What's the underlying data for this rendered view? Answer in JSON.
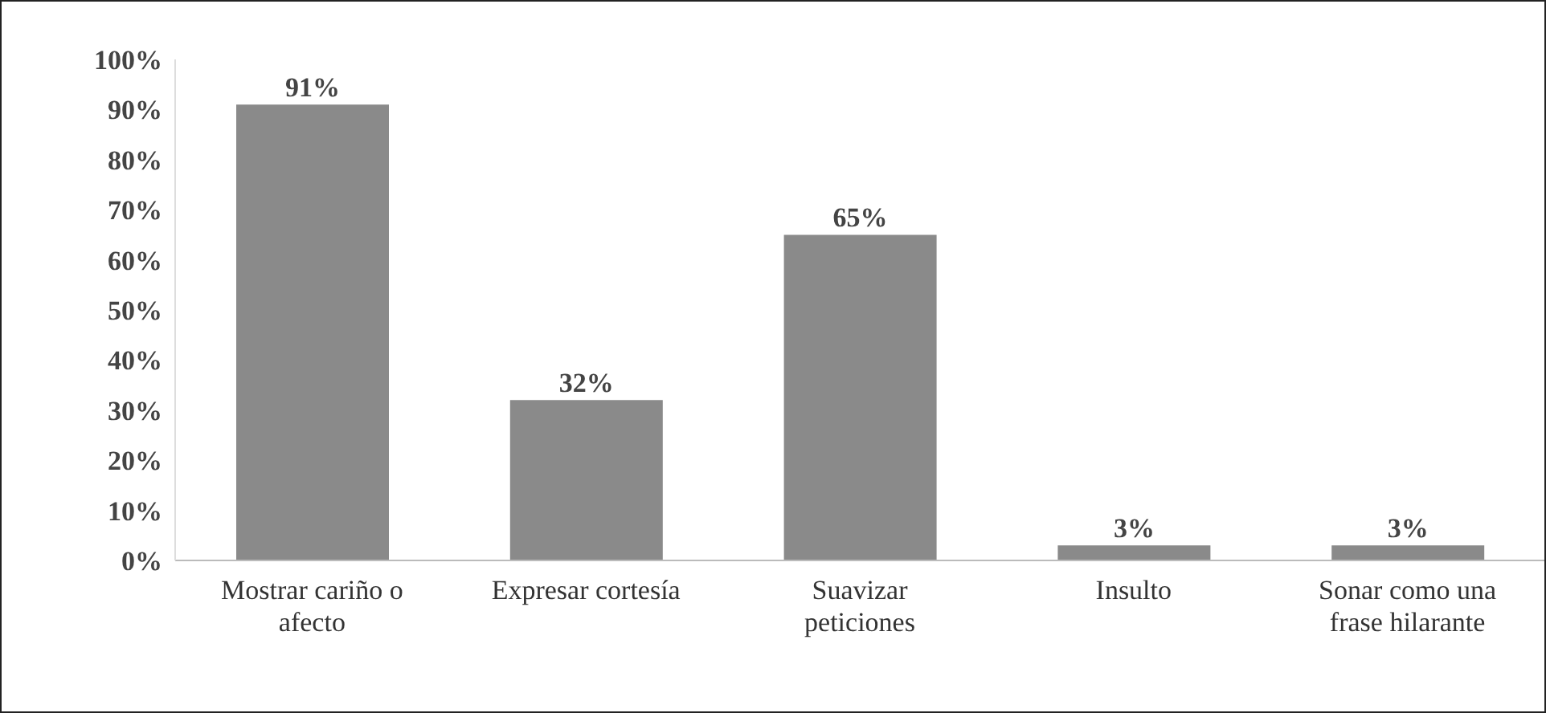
{
  "chart_data": {
    "type": "bar",
    "categories": [
      "Mostrar cariño o afecto",
      "Expresar cortesía",
      "Suavizar peticiones",
      "Insulto",
      "Sonar como una frase hilarante"
    ],
    "values": [
      91,
      32,
      65,
      3,
      3
    ],
    "color": "#8a8a8a",
    "value_labels": [
      "91%",
      "32%",
      "65%",
      "3%",
      "3%"
    ],
    "ylim": [
      0,
      100
    ],
    "yticks": [
      {
        "value": 0,
        "label": "0%"
      },
      {
        "value": 10,
        "label": "10%"
      },
      {
        "value": 20,
        "label": "20%"
      },
      {
        "value": 30,
        "label": "30%"
      },
      {
        "value": 40,
        "label": "40%"
      },
      {
        "value": 50,
        "label": "50%"
      },
      {
        "value": 60,
        "label": "60%"
      },
      {
        "value": 70,
        "label": "70%"
      },
      {
        "value": 80,
        "label": "80%"
      },
      {
        "value": 90,
        "label": "90%"
      },
      {
        "value": 100,
        "label": "100%"
      }
    ],
    "grid": false,
    "legend": false
  }
}
